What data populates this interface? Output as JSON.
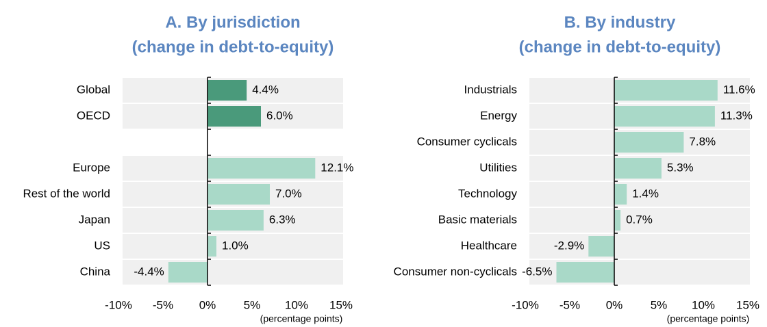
{
  "chart_data": [
    {
      "type": "hbar",
      "title": "A. By jurisdiction",
      "subtitle": "(change in debt-to-equity)",
      "categories": [
        "Global",
        "OECD",
        null,
        "Europe",
        "Rest of the world",
        "Japan",
        "US",
        "China"
      ],
      "values": [
        4.4,
        6.0,
        null,
        12.1,
        7.0,
        6.3,
        1.0,
        -4.4
      ],
      "value_labels": [
        "4.4%",
        "6.0%",
        null,
        "12.1%",
        "7.0%",
        "6.3%",
        "1.0%",
        "-4.4%"
      ],
      "colors": [
        "#4a9a7b",
        "#4a9a7b",
        null,
        "#a9d9c8",
        "#a9d9c8",
        "#a9d9c8",
        "#a9d9c8",
        "#a9d9c8"
      ],
      "xlim": [
        -10,
        15
      ],
      "xticks": [
        {
          "value": -10,
          "label": "-10%"
        },
        {
          "value": -5,
          "label": "-5%"
        },
        {
          "value": 0,
          "label": "0%"
        },
        {
          "value": 5,
          "label": "5%"
        },
        {
          "value": 10,
          "label": "10%"
        },
        {
          "value": 15,
          "label": "15%"
        }
      ],
      "xlabel": "(percentage points)"
    },
    {
      "type": "hbar",
      "title": "B. By industry",
      "subtitle": "(change in debt-to-equity)",
      "categories": [
        "Industrials",
        "Energy",
        "Consumer cyclicals",
        "Utilities",
        "Technology",
        "Basic materials",
        "Healthcare",
        "Consumer non-cyclicals"
      ],
      "values": [
        11.6,
        11.3,
        7.8,
        5.3,
        1.4,
        0.7,
        -2.9,
        -6.5
      ],
      "value_labels": [
        "11.6%",
        "11.3%",
        "7.8%",
        "5.3%",
        "1.4%",
        "0.7%",
        "-2.9%",
        "-6.5%"
      ],
      "colors": [
        "#a9d9c8",
        "#a9d9c8",
        "#a9d9c8",
        "#a9d9c8",
        "#a9d9c8",
        "#a9d9c8",
        "#a9d9c8",
        "#a9d9c8"
      ],
      "xlim": [
        -10,
        15
      ],
      "xticks": [
        {
          "value": -10,
          "label": "-10%"
        },
        {
          "value": -5,
          "label": "-5%"
        },
        {
          "value": 0,
          "label": "0%"
        },
        {
          "value": 5,
          "label": "5%"
        },
        {
          "value": 10,
          "label": "10%"
        },
        {
          "value": 15,
          "label": "15%"
        }
      ],
      "xlabel": "(percentage points)"
    }
  ]
}
